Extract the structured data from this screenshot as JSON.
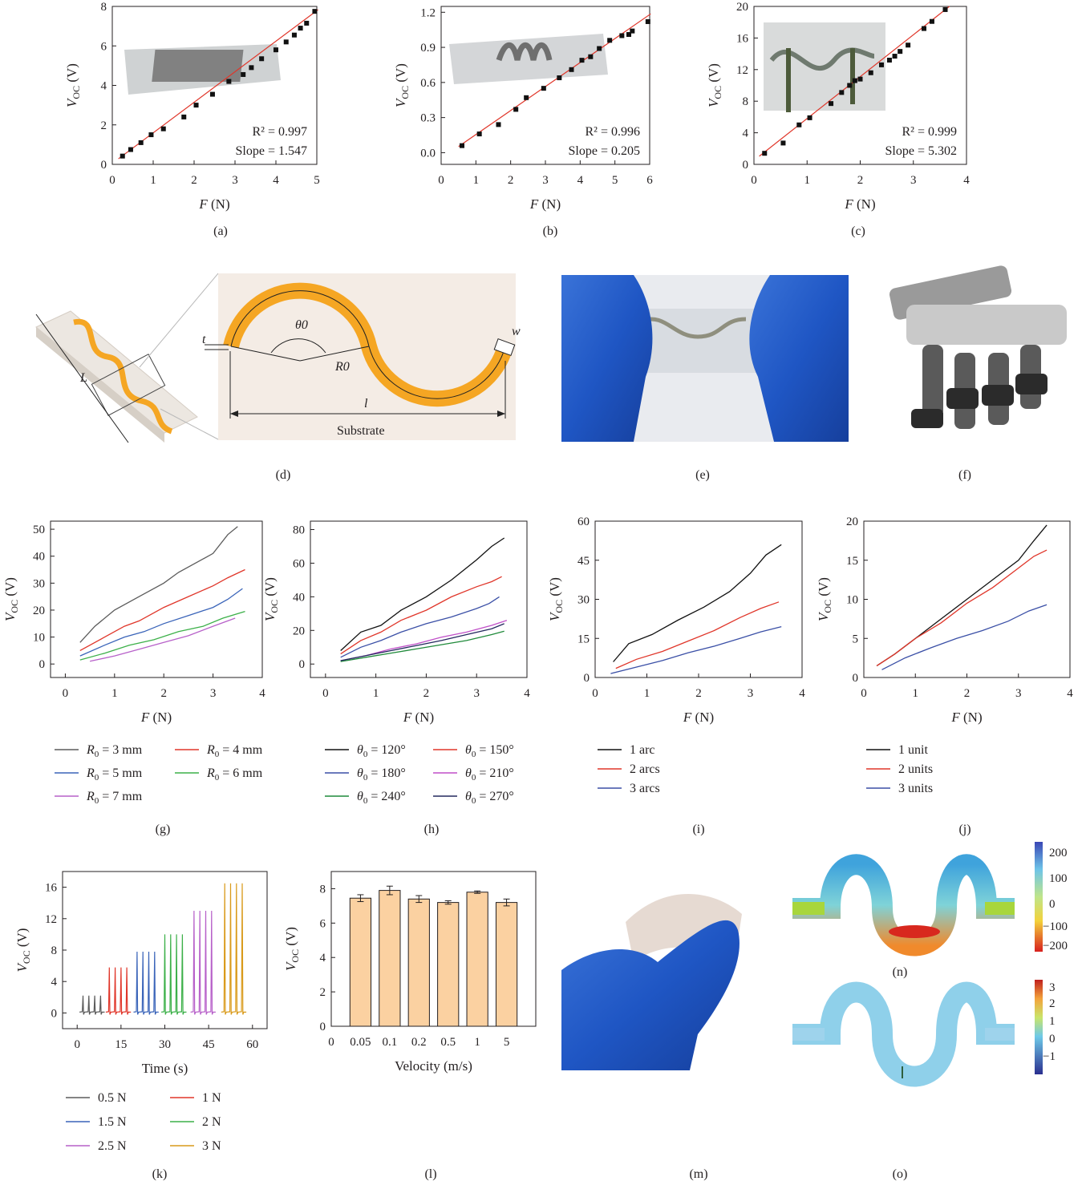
{
  "figure": {
    "panel_labels": [
      "(a)",
      "(b)",
      "(c)",
      "(d)",
      "(e)",
      "(f)",
      "(g)",
      "(h)",
      "(i)",
      "(j)",
      "(k)",
      "(l)",
      "(m)",
      "(n)",
      "(o)"
    ],
    "diagram_d": {
      "t": "t",
      "theta": "θ0",
      "R": "R0",
      "w": "w",
      "l": "l",
      "L": "L",
      "substrate": "Substrate"
    },
    "colorbar_n": [
      "200",
      "100",
      "0",
      "−100",
      "−200"
    ],
    "colorbar_o": [
      "3",
      "2",
      "1",
      "0",
      "−1"
    ]
  },
  "chart_data": [
    {
      "id": "a",
      "type": "scatter",
      "xlabel": "F (N)",
      "ylabel": "VOC (V)",
      "xlim": [
        0,
        5
      ],
      "ylim": [
        0,
        8
      ],
      "xticks": [
        "0",
        "1",
        "2",
        "3",
        "4",
        "5"
      ],
      "yticks": [
        "0",
        "2",
        "4",
        "6",
        "8"
      ],
      "x": [
        0.25,
        0.45,
        0.7,
        0.95,
        1.25,
        1.75,
        2.05,
        2.45,
        2.85,
        3.2,
        3.4,
        3.65,
        4.0,
        4.25,
        4.45,
        4.6,
        4.75,
        4.95
      ],
      "y": [
        0.42,
        0.75,
        1.1,
        1.5,
        1.8,
        2.4,
        3.0,
        3.55,
        4.2,
        4.55,
        4.9,
        5.35,
        5.8,
        6.2,
        6.55,
        6.9,
        7.15,
        7.75
      ],
      "fit": {
        "slope": 1.547,
        "intercept": 0.05
      },
      "annotations": [
        "R² = 0.997",
        "Slope = 1.547"
      ]
    },
    {
      "id": "b",
      "type": "scatter",
      "xlabel": "F (N)",
      "ylabel": "VOC (V)",
      "xlim": [
        0,
        6
      ],
      "ylim": [
        -0.1,
        1.25
      ],
      "xticks": [
        "0",
        "1",
        "2",
        "3",
        "4",
        "5",
        "6"
      ],
      "yticks": [
        "0.0",
        "0.3",
        "0.6",
        "0.9",
        "1.2"
      ],
      "x": [
        0.6,
        1.1,
        1.65,
        2.15,
        2.45,
        2.95,
        3.4,
        3.75,
        4.05,
        4.3,
        4.55,
        4.85,
        5.2,
        5.4,
        5.5,
        5.95
      ],
      "y": [
        0.06,
        0.16,
        0.24,
        0.37,
        0.47,
        0.55,
        0.64,
        0.71,
        0.79,
        0.82,
        0.89,
        0.96,
        1.0,
        1.01,
        1.04,
        1.12
      ],
      "fit": {
        "slope": 0.205,
        "intercept": -0.05
      },
      "annotations": [
        "R² = 0.996",
        "Slope = 0.205"
      ]
    },
    {
      "id": "c",
      "type": "scatter",
      "xlabel": "F (N)",
      "ylabel": "VOC (V)",
      "xlim": [
        0,
        4
      ],
      "ylim": [
        0,
        20
      ],
      "xticks": [
        "0",
        "1",
        "2",
        "3",
        "4"
      ],
      "yticks": [
        "0",
        "4",
        "8",
        "12",
        "16",
        "20"
      ],
      "x": [
        0.2,
        0.55,
        0.85,
        1.05,
        1.45,
        1.65,
        1.8,
        1.9,
        2.0,
        2.2,
        2.4,
        2.55,
        2.65,
        2.75,
        2.9,
        3.2,
        3.35,
        3.6
      ],
      "y": [
        1.4,
        2.7,
        5.0,
        5.9,
        7.7,
        9.1,
        10.0,
        10.6,
        10.8,
        11.6,
        12.6,
        13.2,
        13.7,
        14.3,
        15.1,
        17.2,
        18.1,
        19.6
      ],
      "fit": {
        "slope": 5.302,
        "intercept": 0.5
      },
      "annotations": [
        "R² = 0.999",
        "Slope = 5.302"
      ]
    },
    {
      "id": "g",
      "type": "line",
      "xlabel": "F (N)",
      "ylabel": "VOC (V)",
      "xlim": [
        -0.3,
        4
      ],
      "ylim": [
        -5,
        53
      ],
      "xticks": [
        "0",
        "1",
        "2",
        "3",
        "4"
      ],
      "yticks": [
        "0",
        "10",
        "20",
        "30",
        "40",
        "50"
      ],
      "series": [
        {
          "name": "R0 = 3 mm",
          "color": "#5b5b5b",
          "x": [
            0.3,
            0.6,
            1.0,
            1.5,
            2.0,
            2.3,
            2.8,
            3.0,
            3.3,
            3.5
          ],
          "y": [
            8,
            14,
            20,
            25,
            30,
            34,
            39,
            41,
            48,
            51
          ]
        },
        {
          "name": "R0 = 4 mm",
          "color": "#e0362a",
          "x": [
            0.3,
            0.8,
            1.2,
            1.5,
            2.0,
            2.5,
            3.0,
            3.3,
            3.65
          ],
          "y": [
            5,
            10,
            14,
            16,
            21,
            25,
            29,
            32,
            35
          ]
        },
        {
          "name": "R0 = 5 mm",
          "color": "#3a64b9",
          "x": [
            0.3,
            0.8,
            1.2,
            1.6,
            2.0,
            2.5,
            3.0,
            3.3,
            3.6
          ],
          "y": [
            3,
            7,
            10,
            12,
            15,
            18,
            21,
            24,
            28
          ]
        },
        {
          "name": "R0 = 6 mm",
          "color": "#3cb049",
          "x": [
            0.3,
            0.8,
            1.3,
            1.8,
            2.3,
            2.8,
            3.2,
            3.65
          ],
          "y": [
            1.5,
            4,
            7,
            9,
            12,
            14,
            17,
            19.5
          ]
        },
        {
          "name": "R0 = 7 mm",
          "color": "#b760c9",
          "x": [
            0.5,
            1.0,
            1.5,
            2.0,
            2.5,
            3.0,
            3.45
          ],
          "y": [
            1,
            3,
            5.5,
            8,
            10.5,
            14,
            17
          ]
        }
      ]
    },
    {
      "id": "h",
      "type": "line",
      "xlabel": "F (N)",
      "ylabel": "VOC (V)",
      "xlim": [
        -0.3,
        4
      ],
      "ylim": [
        -8,
        85
      ],
      "xticks": [
        "0",
        "1",
        "2",
        "3",
        "4"
      ],
      "yticks": [
        "0",
        "20",
        "40",
        "60",
        "80"
      ],
      "series": [
        {
          "name": "θ0 = 120°",
          "color": "#111111",
          "x": [
            0.3,
            0.7,
            1.1,
            1.5,
            2.0,
            2.5,
            3.0,
            3.3,
            3.55
          ],
          "y": [
            8,
            19,
            23,
            32,
            40,
            50,
            62,
            70,
            75
          ]
        },
        {
          "name": "θ0 = 150°",
          "color": "#e0362a",
          "x": [
            0.3,
            0.7,
            1.1,
            1.5,
            2.0,
            2.5,
            3.0,
            3.3,
            3.5
          ],
          "y": [
            6,
            14,
            19,
            26,
            32,
            40,
            46,
            49,
            52
          ]
        },
        {
          "name": "θ0 = 180°",
          "color": "#3a4fa6",
          "x": [
            0.3,
            0.7,
            1.1,
            1.5,
            2.0,
            2.5,
            3.0,
            3.25,
            3.45
          ],
          "y": [
            4,
            10,
            14,
            19,
            24,
            28,
            33,
            36,
            40
          ]
        },
        {
          "name": "θ0 = 210°",
          "color": "#c04fc8",
          "x": [
            0.3,
            0.8,
            1.3,
            1.8,
            2.3,
            2.8,
            3.3,
            3.6
          ],
          "y": [
            2,
            5,
            9,
            12,
            16,
            19,
            23,
            26
          ]
        },
        {
          "name": "θ0 = 240°",
          "color": "#1f8a3a",
          "x": [
            0.3,
            0.8,
            1.3,
            1.8,
            2.3,
            2.8,
            3.3,
            3.55
          ],
          "y": [
            1.5,
            4,
            6.5,
            9,
            11.5,
            14,
            17.5,
            19.5
          ]
        },
        {
          "name": "θ0 = 270°",
          "color": "#23285e",
          "x": [
            0.3,
            0.8,
            1.3,
            1.8,
            2.3,
            2.8,
            3.3,
            3.55
          ],
          "y": [
            2,
            5,
            8,
            11,
            14,
            17.5,
            21,
            24
          ]
        }
      ]
    },
    {
      "id": "i",
      "type": "line",
      "xlabel": "F (N)",
      "ylabel": "VOC (V)",
      "xlim": [
        0,
        4
      ],
      "ylim": [
        0,
        60
      ],
      "xticks": [
        "0",
        "1",
        "2",
        "3",
        "4"
      ],
      "yticks": [
        "0",
        "15",
        "30",
        "45",
        "60"
      ],
      "series": [
        {
          "name": "1 arc",
          "color": "#111111",
          "x": [
            0.35,
            0.65,
            1.1,
            1.6,
            2.1,
            2.6,
            3.0,
            3.3,
            3.6
          ],
          "y": [
            6,
            13,
            16.5,
            22,
            27,
            33,
            40,
            47,
            51
          ]
        },
        {
          "name": "2 arcs",
          "color": "#e0362a",
          "x": [
            0.4,
            0.8,
            1.3,
            1.8,
            2.3,
            2.8,
            3.2,
            3.55
          ],
          "y": [
            3.5,
            7,
            10,
            14,
            18,
            23,
            26.5,
            29
          ]
        },
        {
          "name": "3 arcs",
          "color": "#3a4fa6",
          "x": [
            0.3,
            0.8,
            1.3,
            1.8,
            2.3,
            2.8,
            3.2,
            3.6
          ],
          "y": [
            1.5,
            4,
            6.5,
            9.5,
            12,
            15,
            17.5,
            19.5
          ]
        }
      ]
    },
    {
      "id": "j",
      "type": "line",
      "xlabel": "F (N)",
      "ylabel": "VOC (V)",
      "xlim": [
        0,
        4
      ],
      "ylim": [
        0,
        20
      ],
      "xticks": [
        "0",
        "1",
        "2",
        "3",
        "4"
      ],
      "yticks": [
        "0",
        "5",
        "10",
        "15",
        "20"
      ],
      "series": [
        {
          "name": "1 unit",
          "color": "#111111",
          "x": [
            0.25,
            0.6,
            1.0,
            1.5,
            2.0,
            2.5,
            3.0,
            3.3,
            3.55
          ],
          "y": [
            1.5,
            3,
            5,
            7.5,
            10,
            12.5,
            15,
            17.5,
            19.5
          ]
        },
        {
          "name": "2 units",
          "color": "#e0362a",
          "x": [
            0.25,
            0.6,
            1.0,
            1.5,
            2.0,
            2.5,
            3.0,
            3.3,
            3.55
          ],
          "y": [
            1.5,
            3,
            5,
            7,
            9.5,
            11.5,
            14,
            15.5,
            16.3
          ]
        },
        {
          "name": "3 units",
          "color": "#3a4fa6",
          "x": [
            0.35,
            0.8,
            1.3,
            1.8,
            2.3,
            2.8,
            3.2,
            3.55
          ],
          "y": [
            1,
            2.5,
            3.8,
            5,
            6,
            7.2,
            8.5,
            9.3
          ]
        }
      ]
    },
    {
      "id": "k",
      "type": "line",
      "xlabel": "Time (s)",
      "ylabel": "VOC (V)",
      "xlim": [
        -5,
        65
      ],
      "ylim": [
        -2,
        18
      ],
      "xticks": [
        "0",
        "15",
        "30",
        "45",
        "60"
      ],
      "yticks": [
        "0",
        "4",
        "8",
        "12",
        "16"
      ],
      "series": [
        {
          "name": "0.5 N",
          "color": "#5b5b5b",
          "peaks_t": [
            2,
            4,
            6,
            8
          ],
          "peak": 2.2
        },
        {
          "name": "1 N",
          "color": "#e0362a",
          "peaks_t": [
            11,
            13,
            15,
            17
          ],
          "peak": 5.8
        },
        {
          "name": "1.5 N",
          "color": "#3a64b9",
          "peaks_t": [
            20.5,
            22.5,
            24.5,
            26.5
          ],
          "peak": 7.8
        },
        {
          "name": "2 N",
          "color": "#3cb049",
          "peaks_t": [
            30,
            32,
            34,
            36
          ],
          "peak": 10
        },
        {
          "name": "2.5 N",
          "color": "#b760c9",
          "peaks_t": [
            40,
            42,
            44,
            46
          ],
          "peak": 13
        },
        {
          "name": "3 N",
          "color": "#d99a1a",
          "peaks_t": [
            50.5,
            52.5,
            54.5,
            56.5
          ],
          "peak": 16.5
        }
      ]
    },
    {
      "id": "l",
      "type": "bar",
      "xlabel": "Velocity (m/s)",
      "ylabel": "VOC (V)",
      "ylim": [
        0,
        9
      ],
      "yticks": [
        "0",
        "2",
        "4",
        "6",
        "8"
      ],
      "categories": [
        "0.05",
        "0.1",
        "0.2",
        "0.5",
        "1",
        "5"
      ],
      "x_origin_label": "0",
      "values": [
        7.45,
        7.9,
        7.4,
        7.2,
        7.8,
        7.2
      ],
      "errors": [
        0.2,
        0.25,
        0.2,
        0.1,
        0.07,
        0.2
      ],
      "color": "#fbd1a1"
    }
  ]
}
